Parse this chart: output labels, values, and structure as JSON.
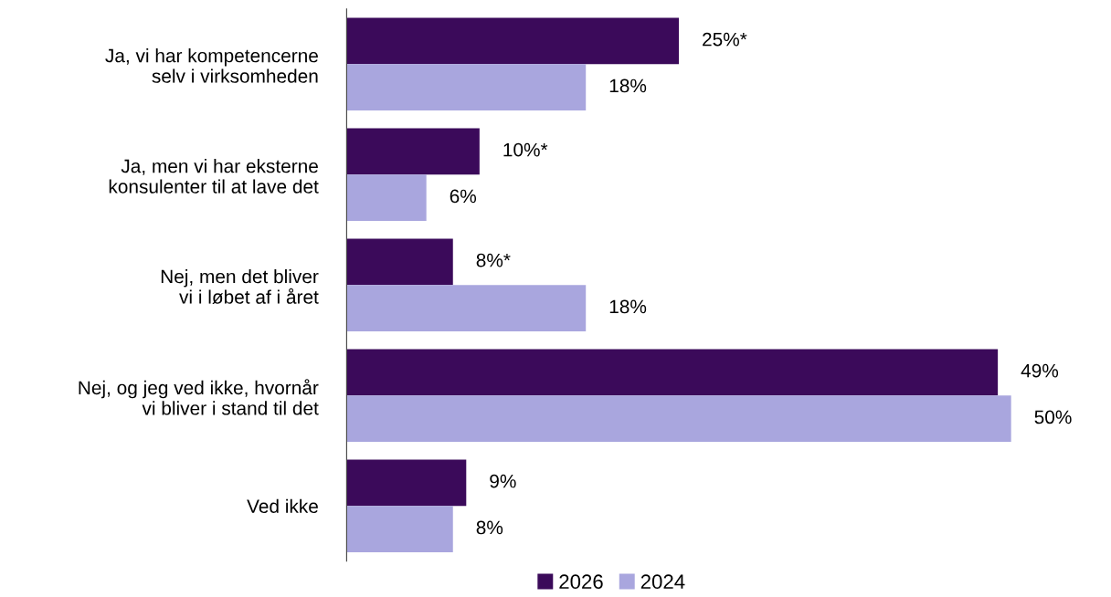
{
  "chart_data": {
    "type": "bar",
    "orientation": "horizontal",
    "categories": [
      "Ja, vi har kompetencerne\nselv i virksomheden",
      "Ja, men vi har eksterne\nkonsulenter til at lave det",
      "Nej, men det bliver\nvi i løbet af i året",
      "Nej, og jeg ved ikke, hvornår\nvi bliver i stand til det",
      "Ved ikke"
    ],
    "series": [
      {
        "name": "2026",
        "color": "#3b0a5a",
        "values": [
          25,
          10,
          8,
          49,
          9
        ],
        "value_labels": [
          "25%*",
          "10%*",
          "8%*",
          "49%",
          "9%"
        ]
      },
      {
        "name": "2024",
        "color": "#a9a6de",
        "values": [
          18,
          6,
          18,
          50,
          8
        ],
        "value_labels": [
          "18%",
          "6%",
          "18%",
          "50%",
          "8%"
        ]
      }
    ],
    "tick_labels": "y",
    "grid": false,
    "legend": "bottom"
  }
}
